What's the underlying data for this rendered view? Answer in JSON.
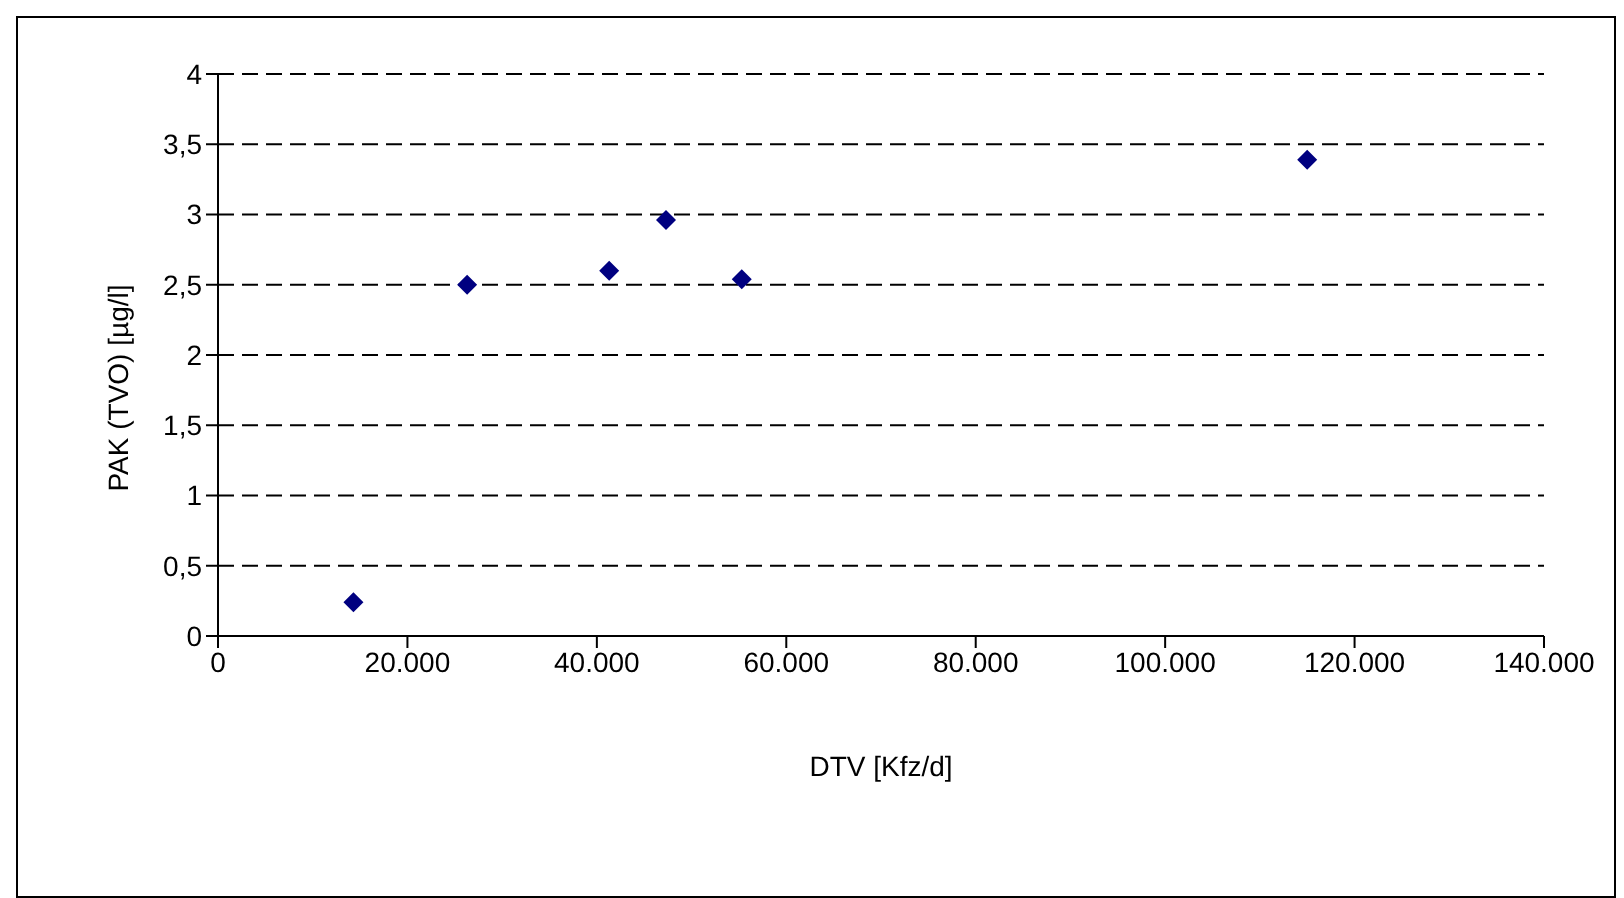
{
  "chart_data": {
    "type": "scatter",
    "xlabel": "DTV [Kfz/d]",
    "ylabel": "PAK (TVO) [µg/l]",
    "x": [
      14300,
      26300,
      41300,
      47300,
      55300,
      115000
    ],
    "series": [
      {
        "color": "#000080",
        "values": [
          0.24,
          2.5,
          2.6,
          2.96,
          2.54,
          3.39
        ]
      }
    ],
    "xlim": [
      0,
      140000
    ],
    "xticks": [
      {
        "value": 0,
        "label": "0"
      },
      {
        "value": 20000,
        "label": "20.000"
      },
      {
        "value": 40000,
        "label": "40.000"
      },
      {
        "value": 60000,
        "label": "60.000"
      },
      {
        "value": 80000,
        "label": "80.000"
      },
      {
        "value": 100000,
        "label": "100.000"
      },
      {
        "value": 120000,
        "label": "120.000"
      },
      {
        "value": 140000,
        "label": "140.000"
      }
    ],
    "ylim": [
      0,
      4
    ],
    "yticks": [
      {
        "value": 0,
        "label": "0"
      },
      {
        "value": 0.5,
        "label": "0,5"
      },
      {
        "value": 1,
        "label": "1"
      },
      {
        "value": 1.5,
        "label": "1,5"
      },
      {
        "value": 2,
        "label": "2"
      },
      {
        "value": 2.5,
        "label": "2,5"
      },
      {
        "value": 3,
        "label": "3"
      },
      {
        "value": 3.5,
        "label": "3,5"
      },
      {
        "value": 4,
        "label": "4"
      }
    ],
    "grid": "y",
    "marker": "diamond",
    "legend": false
  }
}
